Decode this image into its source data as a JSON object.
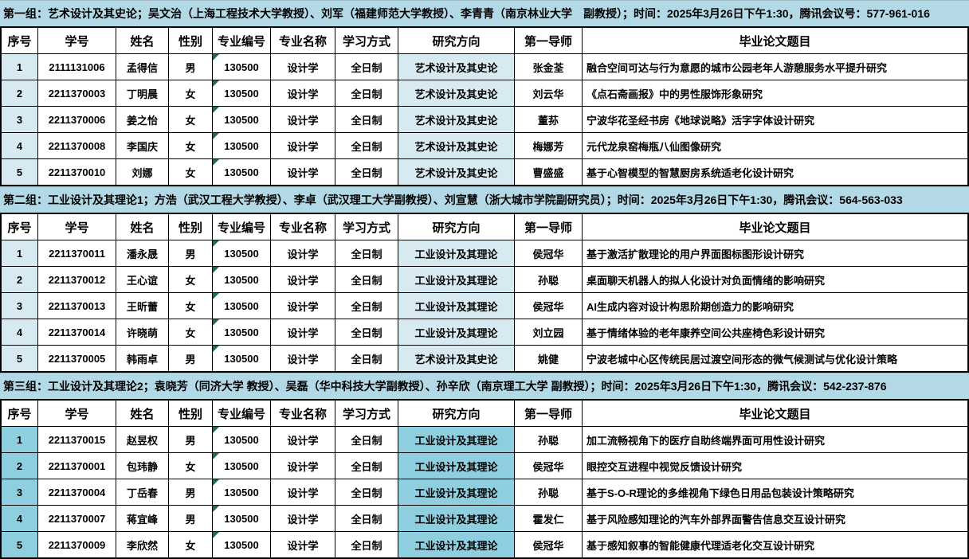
{
  "colors": {
    "band_bg": "#b2d9e5",
    "cell_tint_light": "#d8eaf1",
    "cell_tint_dark": "#8fcede",
    "gridline": "#000000",
    "error_triangle_green": "#1e7145"
  },
  "columns": [
    "序号",
    "学号",
    "姓名",
    "性别",
    "专业编号",
    "专业名称",
    "学习方式",
    "研究方向",
    "第一导师",
    "毕业论文题目"
  ],
  "groups": [
    {
      "header": "第一组：艺术设计及其史论；吴文治（上海工程技术大学教授）、刘军（福建师范大学教授）、李青青（南京林业大学　副教授）；时间：2025年3月26日下午1:30，腾讯会议号：577-961-016",
      "tint": "light",
      "rows": [
        {
          "no": "1",
          "student_id": "2111131006",
          "name": "孟得信",
          "gender": "男",
          "major_code": "130500",
          "major_name": "设计学",
          "study_mode": "全日制",
          "direction": "艺术设计及其史论",
          "supervisor": "张金荃",
          "thesis_title": "融合空间可达与行为意愿的城市公园老年人游憩服务水平提升研究"
        },
        {
          "no": "2",
          "student_id": "2211370003",
          "name": "丁明晨",
          "gender": "女",
          "major_code": "130500",
          "major_name": "设计学",
          "study_mode": "全日制",
          "direction": "艺术设计及其史论",
          "supervisor": "刘云华",
          "thesis_title": "《点石斋画报》中的男性服饰形象研究"
        },
        {
          "no": "3",
          "student_id": "2211370006",
          "name": "姜之怡",
          "gender": "女",
          "major_code": "130500",
          "major_name": "设计学",
          "study_mode": "全日制",
          "direction": "艺术设计及其史论",
          "supervisor": "董荪",
          "thesis_title": "宁波华花圣经书房《地球说略》活字字体设计研究"
        },
        {
          "no": "4",
          "student_id": "2211370008",
          "name": "李国庆",
          "gender": "女",
          "major_code": "130500",
          "major_name": "设计学",
          "study_mode": "全日制",
          "direction": "艺术设计及其史论",
          "supervisor": "梅娜芳",
          "thesis_title": "元代龙泉窑梅瓶八仙图像研究"
        },
        {
          "no": "5",
          "student_id": "2211370010",
          "name": "刘娜",
          "gender": "女",
          "major_code": "130500",
          "major_name": "设计学",
          "study_mode": "全日制",
          "direction": "艺术设计及其史论",
          "supervisor": "曹盛盛",
          "thesis_title": "基于心智模型的智慧厨房系统适老化设计研究"
        }
      ]
    },
    {
      "header": "第二组：工业设计及其理论1；方浩（武汉工程大学教授）、李卓（武汉理工大学副教授）、刘宣慧（浙大城市学院副研究员）；时间：2025年3月26日下午1:30，腾讯会议：564-563-033",
      "tint": "light",
      "rows": [
        {
          "no": "1",
          "student_id": "2211370011",
          "name": "潘永晟",
          "gender": "男",
          "major_code": "130500",
          "major_name": "设计学",
          "study_mode": "全日制",
          "direction": "工业设计及其理论",
          "supervisor": "侯冠华",
          "thesis_title": "基于激活扩散理论的用户界面图标图形设计研究"
        },
        {
          "no": "2",
          "student_id": "2211370012",
          "name": "王心谊",
          "gender": "女",
          "major_code": "130500",
          "major_name": "设计学",
          "study_mode": "全日制",
          "direction": "工业设计及其理论",
          "supervisor": "孙聪",
          "thesis_title": "桌面聊天机器人的拟人化设计对负面情绪的影响研究"
        },
        {
          "no": "3",
          "student_id": "2211370013",
          "name": "王昕蕾",
          "gender": "女",
          "major_code": "130500",
          "major_name": "设计学",
          "study_mode": "全日制",
          "direction": "工业设计及其理论",
          "supervisor": "侯冠华",
          "thesis_title": "AI生成内容对设计构思阶期创造力的影响研究"
        },
        {
          "no": "4",
          "student_id": "2211370014",
          "name": "许晓萌",
          "gender": "女",
          "major_code": "130500",
          "major_name": "设计学",
          "study_mode": "全日制",
          "direction": "工业设计及其理论",
          "supervisor": "刘立园",
          "thesis_title": "基于情绪体验的老年康养空间公共座椅色彩设计研究"
        },
        {
          "no": "5",
          "student_id": "2211370005",
          "name": "韩雨卓",
          "gender": "男",
          "major_code": "130500",
          "major_name": "设计学",
          "study_mode": "全日制",
          "direction": "艺术设计及其史论",
          "supervisor": "姚健",
          "thesis_title": "宁波老城中心区传统民居过渡空间形态的微气候测试与优化设计策略"
        }
      ]
    },
    {
      "header": "第三组：工业设计及其理论2；袁晓芳（同济大学 教授）、吴磊（华中科技大学副教授）、孙辛欣（南京理工大学 副教授）；时间：2025年3月26日下午1:30，腾讯会议：542-237-876",
      "tint": "dark",
      "rows": [
        {
          "no": "1",
          "student_id": "2211370015",
          "name": "赵昱权",
          "gender": "男",
          "major_code": "130500",
          "major_name": "设计学",
          "study_mode": "全日制",
          "direction": "工业设计及其理论",
          "supervisor": "孙聪",
          "thesis_title": "加工流畅视角下的医疗自助终端界面可用性设计研究"
        },
        {
          "no": "2",
          "student_id": "2211370001",
          "name": "包玮静",
          "gender": "女",
          "major_code": "130500",
          "major_name": "设计学",
          "study_mode": "全日制",
          "direction": "工业设计及其理论",
          "supervisor": "侯冠华",
          "thesis_title": "眼控交互进程中视觉反馈设计研究"
        },
        {
          "no": "3",
          "student_id": "2211370004",
          "name": "丁岳春",
          "gender": "男",
          "major_code": "130500",
          "major_name": "设计学",
          "study_mode": "全日制",
          "direction": "工业设计及其理论",
          "supervisor": "孙聪",
          "thesis_title": "基于S-O-R理论的多维视角下绿色日用品包装设计策略研究"
        },
        {
          "no": "4",
          "student_id": "2211370007",
          "name": "蒋宜峰",
          "gender": "男",
          "major_code": "130500",
          "major_name": "设计学",
          "study_mode": "全日制",
          "direction": "工业设计及其理论",
          "supervisor": "霍发仁",
          "thesis_title": "基于风险感知理论的汽车外部界面警告信息交互设计研究"
        },
        {
          "no": "5",
          "student_id": "2211370009",
          "name": "李欣然",
          "gender": "女",
          "major_code": "130500",
          "major_name": "设计学",
          "study_mode": "全日制",
          "direction": "工业设计及其理论",
          "supervisor": "侯冠华",
          "thesis_title": "基于感知叙事的智能健康代理适老化交互设计研究"
        }
      ]
    }
  ]
}
